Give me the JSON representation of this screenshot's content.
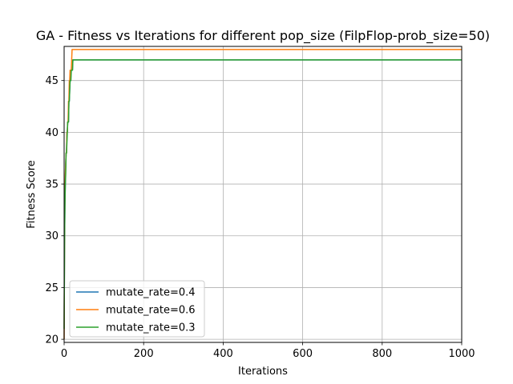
{
  "chart_data": {
    "type": "line",
    "title": "GA - Fitness vs Iterations for different pop_size (FilpFlop-prob_size=50)",
    "xlabel": "Iterations",
    "ylabel": "Fitness Score",
    "xlim": [
      0,
      1000
    ],
    "ylim": [
      19.7,
      48.3
    ],
    "xticks": [
      0,
      200,
      400,
      600,
      800,
      1000
    ],
    "yticks": [
      20,
      25,
      30,
      35,
      40,
      45
    ],
    "grid": true,
    "legend_position": "lower-left",
    "series": [
      {
        "name": "mutate_rate=0.4",
        "color": "#1f77b4",
        "x": [
          0,
          1,
          2,
          3,
          4,
          5,
          6,
          7,
          8,
          9,
          10,
          11,
          12,
          13,
          14,
          15,
          16,
          17,
          18,
          19,
          20,
          21,
          22,
          23,
          24,
          1000
        ],
        "y": [
          20,
          29,
          33,
          35,
          37,
          38,
          38,
          40,
          40,
          41,
          41,
          41,
          43,
          43,
          44,
          45,
          45,
          46,
          46,
          46,
          46,
          46,
          47,
          47,
          47,
          47
        ]
      },
      {
        "name": "mutate_rate=0.6",
        "color": "#ff7f0e",
        "x": [
          0,
          1,
          2,
          3,
          4,
          5,
          6,
          7,
          8,
          9,
          10,
          11,
          12,
          13,
          14,
          15,
          16,
          17,
          18,
          19,
          20,
          1000
        ],
        "y": [
          20,
          30,
          34,
          36,
          37,
          38,
          38,
          40,
          40,
          41,
          41,
          43,
          43,
          45,
          45,
          46,
          46,
          46,
          46,
          47,
          48,
          48
        ]
      },
      {
        "name": "mutate_rate=0.3",
        "color": "#2ca02c",
        "x": [
          0,
          1,
          2,
          3,
          4,
          5,
          6,
          7,
          8,
          9,
          10,
          11,
          12,
          13,
          14,
          15,
          16,
          17,
          18,
          19,
          20,
          21,
          22,
          23,
          1000
        ],
        "y": [
          21,
          29,
          33,
          35,
          36,
          38,
          38,
          39,
          40,
          41,
          41,
          41,
          43,
          43,
          44,
          45,
          45,
          45,
          46,
          46,
          46,
          46,
          47,
          47,
          47
        ]
      }
    ]
  }
}
